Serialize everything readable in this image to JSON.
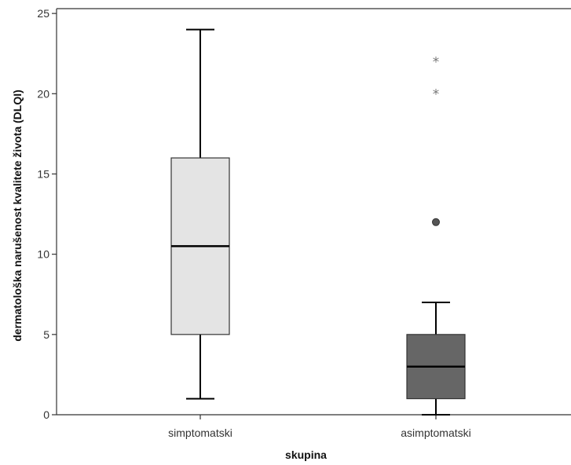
{
  "chart_data": {
    "type": "boxplot",
    "xlabel": "skupina",
    "ylabel": "dermatološka narušenost kvalitete života (DLQI)",
    "ylim": [
      0,
      25.3
    ],
    "yticks": [
      0,
      5,
      10,
      15,
      20,
      25
    ],
    "grid": false,
    "groups": [
      {
        "category": "simptomatski",
        "min": 1,
        "q1": 5,
        "median": 10.5,
        "q3": 16,
        "max": 24,
        "fill": "#e4e4e4",
        "outliers": [],
        "extremes": []
      },
      {
        "category": "asimptomatski",
        "min": 0,
        "q1": 1,
        "median": 3,
        "q3": 5,
        "max": 7,
        "fill": "#666666",
        "outliers": [
          12
        ],
        "extremes": [
          20,
          22
        ]
      }
    ]
  }
}
